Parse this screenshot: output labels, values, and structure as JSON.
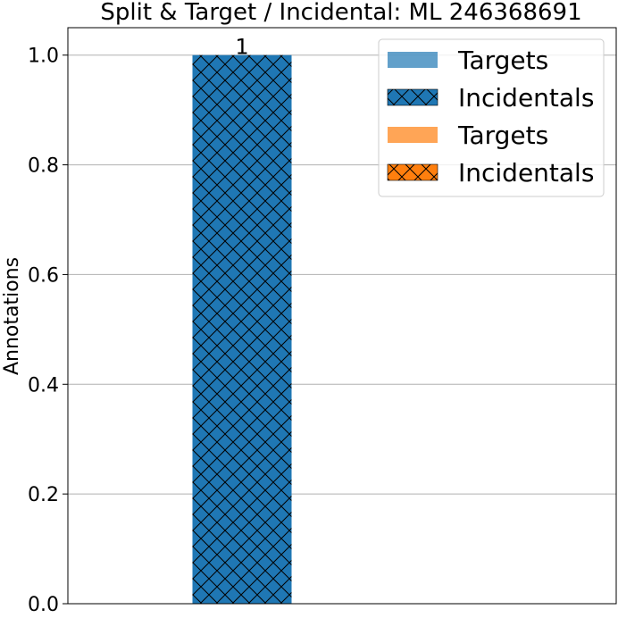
{
  "chart_data": {
    "type": "bar",
    "title": "Split & Target / Incidental: ML 246368691",
    "xlabel": "",
    "ylabel": "Annotations",
    "ylim": [
      0,
      1.05
    ],
    "yticks": [
      0.0,
      0.2,
      0.4,
      0.6,
      0.8,
      1.0
    ],
    "ytick_labels": [
      "0.0",
      "0.2",
      "0.4",
      "0.6",
      "0.8",
      "1.0"
    ],
    "grid": "horizontal",
    "legend_position": "top-right",
    "groups": 2,
    "series": [
      {
        "name": "Targets",
        "color": "#1f77b4",
        "pattern": "solid",
        "values": [
          0,
          0
        ]
      },
      {
        "name": "Incidentals",
        "color": "#1f77b4",
        "pattern": "crosshatch",
        "values": [
          1,
          0
        ]
      },
      {
        "name": "Targets",
        "color": "#ff7f0e",
        "pattern": "solid",
        "values": [
          0,
          0
        ]
      },
      {
        "name": "Incidentals",
        "color": "#ff7f0e",
        "pattern": "crosshatch",
        "values": [
          0,
          0
        ]
      }
    ],
    "bar_labels": [
      {
        "group": 0,
        "text": "1"
      }
    ]
  }
}
